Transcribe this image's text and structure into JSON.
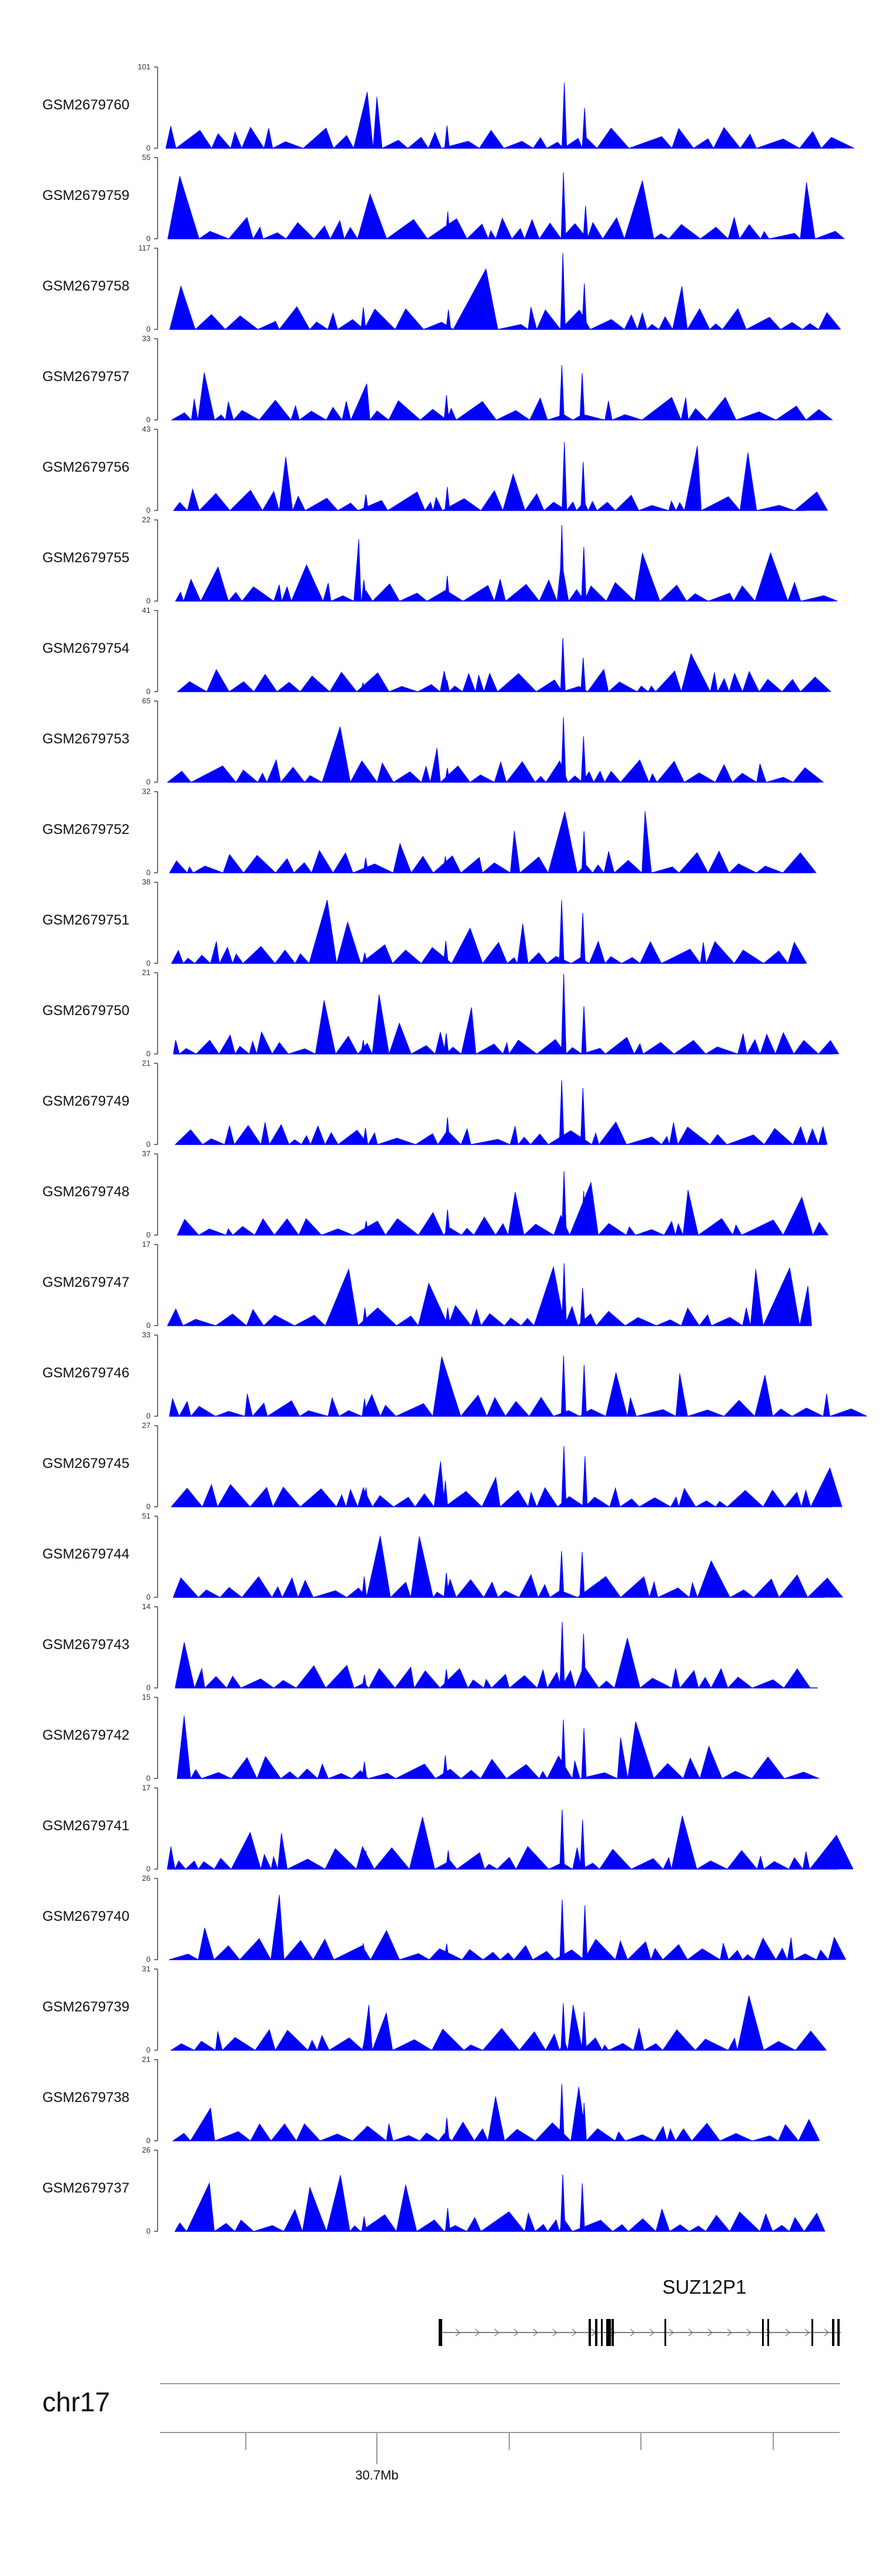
{
  "chart_data": {
    "type": "area",
    "track_color": "#0000ff",
    "tracks": [
      {
        "name": "GSM2679760",
        "ymax": "101",
        "ymin": "0",
        "seed": 760
      },
      {
        "name": "GSM2679759",
        "ymax": "55",
        "ymin": "0",
        "seed": 759
      },
      {
        "name": "GSM2679758",
        "ymax": "117",
        "ymin": "0",
        "seed": 758
      },
      {
        "name": "GSM2679757",
        "ymax": "33",
        "ymin": "0",
        "seed": 757
      },
      {
        "name": "GSM2679756",
        "ymax": "43",
        "ymin": "0",
        "seed": 756
      },
      {
        "name": "GSM2679755",
        "ymax": "22",
        "ymin": "0",
        "seed": 755
      },
      {
        "name": "GSM2679754",
        "ymax": "41",
        "ymin": "0",
        "seed": 754
      },
      {
        "name": "GSM2679753",
        "ymax": "65",
        "ymin": "0",
        "seed": 753
      },
      {
        "name": "GSM2679752",
        "ymax": "32",
        "ymin": "0",
        "seed": 752
      },
      {
        "name": "GSM2679751",
        "ymax": "38",
        "ymin": "0",
        "seed": 751
      },
      {
        "name": "GSM2679750",
        "ymax": "21",
        "ymin": "0",
        "seed": 750
      },
      {
        "name": "GSM2679749",
        "ymax": "21",
        "ymin": "0",
        "seed": 749
      },
      {
        "name": "GSM2679748",
        "ymax": "37",
        "ymin": "0",
        "seed": 748
      },
      {
        "name": "GSM2679747",
        "ymax": "17",
        "ymin": "0",
        "seed": 747
      },
      {
        "name": "GSM2679746",
        "ymax": "33",
        "ymin": "0",
        "seed": 746
      },
      {
        "name": "GSM2679745",
        "ymax": "27",
        "ymin": "0",
        "seed": 745
      },
      {
        "name": "GSM2679744",
        "ymax": "51",
        "ymin": "0",
        "seed": 744
      },
      {
        "name": "GSM2679743",
        "ymax": "14",
        "ymin": "0",
        "seed": 743
      },
      {
        "name": "GSM2679742",
        "ymax": "15",
        "ymin": "0",
        "seed": 742
      },
      {
        "name": "GSM2679741",
        "ymax": "17",
        "ymin": "0",
        "seed": 741
      },
      {
        "name": "GSM2679740",
        "ymax": "26",
        "ymin": "0",
        "seed": 740
      },
      {
        "name": "GSM2679739",
        "ymax": "31",
        "ymin": "0",
        "seed": 739
      },
      {
        "name": "GSM2679738",
        "ymax": "21",
        "ymin": "0",
        "seed": 738
      },
      {
        "name": "GSM2679737",
        "ymax": "26",
        "ymin": "0",
        "seed": 737
      }
    ],
    "gene": {
      "name": "SUZ12P1"
    },
    "chromosome": "chr17",
    "position_label": "30.7Mb"
  }
}
